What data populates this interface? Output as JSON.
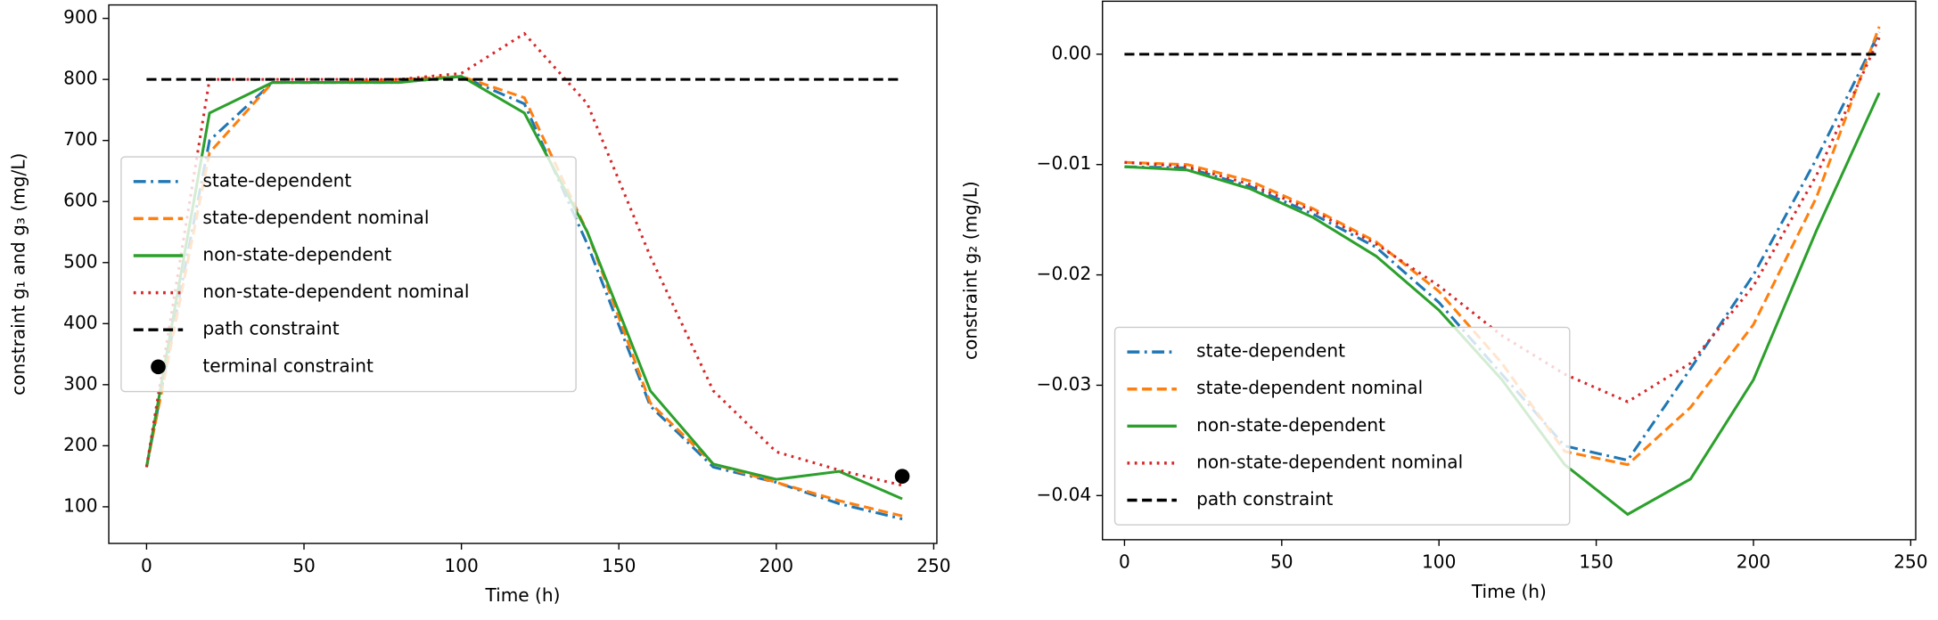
{
  "chart_data": [
    {
      "type": "line",
      "xlabel": "Time (h)",
      "ylabel": "constraint g₁ and g₃ (mg/L)",
      "x": [
        0,
        20,
        40,
        60,
        80,
        100,
        120,
        140,
        160,
        180,
        200,
        220,
        240
      ],
      "xlim": [
        -12,
        251
      ],
      "xticks": [
        0,
        50,
        100,
        150,
        200,
        250
      ],
      "ylim": [
        40,
        922
      ],
      "yticks": [
        100,
        200,
        300,
        400,
        500,
        600,
        700,
        800,
        900
      ],
      "legend": "center left",
      "series": [
        {
          "name": "state-dependent",
          "color": "#1f77b4",
          "style": "dashdot",
          "values": [
            165,
            700,
            795,
            795,
            795,
            805,
            760,
            530,
            265,
            165,
            140,
            105,
            80
          ]
        },
        {
          "name": "state-dependent nominal",
          "color": "#ff7f0e",
          "style": "dashed",
          "values": [
            165,
            680,
            795,
            795,
            800,
            805,
            770,
            550,
            270,
            170,
            140,
            110,
            85
          ]
        },
        {
          "name": "non-state-dependent",
          "color": "#2ca02c",
          "style": "solid",
          "values": [
            165,
            745,
            795,
            795,
            795,
            805,
            745,
            550,
            290,
            170,
            145,
            158,
            113
          ]
        },
        {
          "name": "non-state-dependent nominal",
          "color": "#d62728",
          "style": "dotted",
          "values": [
            165,
            800,
            800,
            800,
            800,
            810,
            875,
            760,
            510,
            290,
            190,
            160,
            135
          ]
        },
        {
          "name": "path constraint",
          "color": "#000000",
          "style": "dashed",
          "values": [
            800,
            800,
            800,
            800,
            800,
            800,
            800,
            800,
            800,
            800,
            800,
            800,
            800
          ]
        }
      ],
      "markers": [
        {
          "name": "terminal constraint",
          "color": "#000000",
          "x": [
            240
          ],
          "y": [
            150
          ]
        }
      ]
    },
    {
      "type": "line",
      "xlabel": "Time (h)",
      "ylabel": "constraint g₂ (mg/L)",
      "x": [
        0,
        20,
        40,
        60,
        80,
        100,
        120,
        140,
        160,
        180,
        200,
        220,
        240
      ],
      "xlim": [
        -7,
        251.6
      ],
      "xticks": [
        0,
        50,
        100,
        150,
        200,
        250
      ],
      "ylim": [
        -0.044,
        0.0048
      ],
      "yticks": [
        {
          "value": -0.04,
          "label": "−0.04"
        },
        {
          "value": -0.03,
          "label": "−0.03"
        },
        {
          "value": -0.02,
          "label": "−0.02"
        },
        {
          "value": -0.01,
          "label": "−0.01"
        },
        {
          "value": 0,
          "label": "0.00"
        }
      ],
      "legend": "lower left",
      "series": [
        {
          "name": "state-dependent",
          "color": "#1f77b4",
          "style": "dashdot",
          "values": [
            -0.0102,
            -0.0103,
            -0.012,
            -0.0145,
            -0.0175,
            -0.0225,
            -0.029,
            -0.0355,
            -0.0368,
            -0.0285,
            -0.02,
            -0.0095,
            0.002
          ]
        },
        {
          "name": "state-dependent nominal",
          "color": "#ff7f0e",
          "style": "dashed",
          "values": [
            -0.0098,
            -0.01,
            -0.0115,
            -0.014,
            -0.017,
            -0.0215,
            -0.028,
            -0.036,
            -0.0372,
            -0.032,
            -0.0245,
            -0.013,
            0.0025
          ]
        },
        {
          "name": "non-state-dependent",
          "color": "#2ca02c",
          "style": "solid",
          "values": [
            -0.0102,
            -0.0105,
            -0.0122,
            -0.0148,
            -0.0183,
            -0.0232,
            -0.0295,
            -0.0372,
            -0.0417,
            -0.0385,
            -0.0295,
            -0.016,
            -0.0035
          ]
        },
        {
          "name": "non-state-dependent nominal",
          "color": "#d62728",
          "style": "dotted",
          "values": [
            -0.0098,
            -0.0102,
            -0.0118,
            -0.0142,
            -0.0172,
            -0.021,
            -0.0255,
            -0.029,
            -0.0315,
            -0.028,
            -0.021,
            -0.011,
            0.0015
          ]
        },
        {
          "name": "path constraint",
          "color": "#000000",
          "style": "dashed",
          "values": [
            0,
            0,
            0,
            0,
            0,
            0,
            0,
            0,
            0,
            0,
            0,
            0,
            0
          ]
        }
      ]
    }
  ]
}
